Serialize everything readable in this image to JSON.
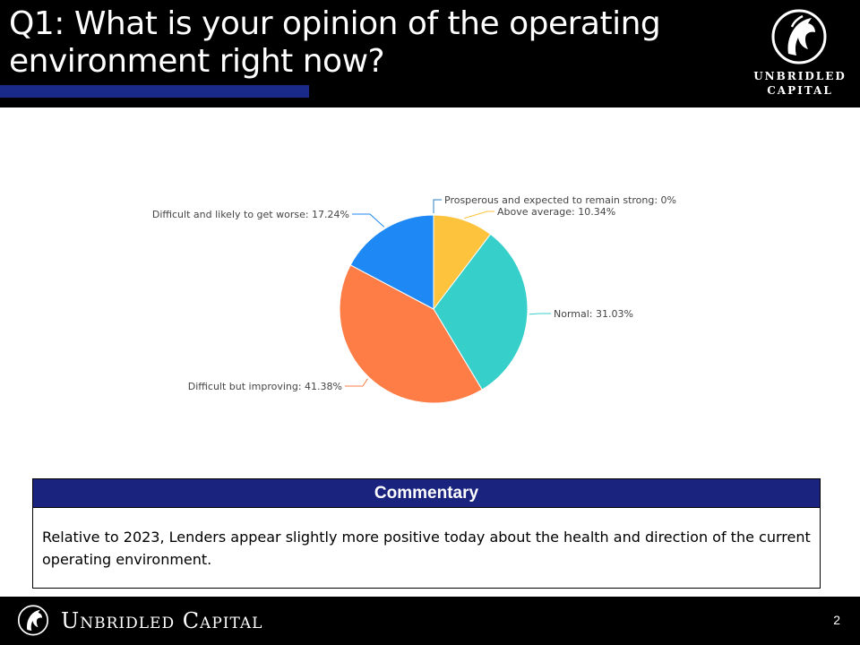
{
  "header": {
    "title_line1": "Q1: What is your opinion of the operating",
    "title_line2": "environment right now?",
    "logo_line1": "UNBRIDLED",
    "logo_line2": "CAPITAL"
  },
  "chart_data": {
    "type": "pie",
    "slices": [
      {
        "label": "Prosperous and expected to remain strong",
        "value": 0,
        "display": "Prosperous and expected to remain strong: 0%",
        "color": "#2a7fc4"
      },
      {
        "label": "Above average",
        "value": 10.34,
        "display": "Above average: 10.34%",
        "color": "#fec33d"
      },
      {
        "label": "Normal",
        "value": 31.03,
        "display": "Normal: 31.03%",
        "color": "#37cfca"
      },
      {
        "label": "Difficult but improving",
        "value": 41.38,
        "display": "Difficult but improving: 41.38%",
        "color": "#fe7d47"
      },
      {
        "label": "Difficult and likely to get worse",
        "value": 17.24,
        "display": "Difficult and likely to get worse: 17.24%",
        "color": "#1e88f5"
      }
    ]
  },
  "commentary": {
    "heading": "Commentary",
    "body": "Relative to 2023, Lenders appear slightly more positive today about the health and direction of the current operating environment."
  },
  "footer": {
    "brand": "Unbridled Capital",
    "page_number": "2"
  },
  "colors": {
    "header_bg": "#000000",
    "accent_blue": "#1a237e"
  }
}
